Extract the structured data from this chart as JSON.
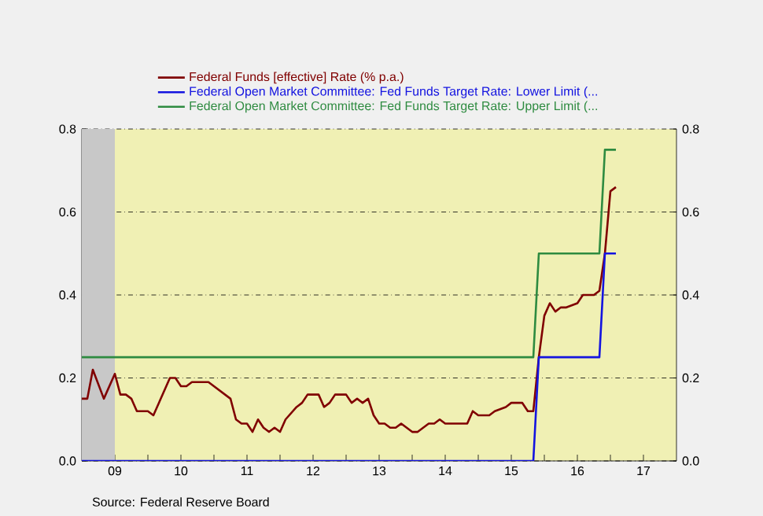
{
  "chart_data": {
    "type": "line",
    "annotations": [
      "Source:  Federal Reserve Board"
    ],
    "xlim": [
      "2009-01",
      "2018-01"
    ],
    "xticks": [
      {
        "value": "2009-07",
        "label": "09"
      },
      {
        "value": "2010-01",
        "label": null
      },
      {
        "value": "2010-07",
        "label": "10"
      },
      {
        "value": "2011-01",
        "label": null
      },
      {
        "value": "2011-07",
        "label": "11"
      },
      {
        "value": "2012-01",
        "label": null
      },
      {
        "value": "2012-07",
        "label": "12"
      },
      {
        "value": "2013-01",
        "label": null
      },
      {
        "value": "2013-07",
        "label": "13"
      },
      {
        "value": "2014-01",
        "label": null
      },
      {
        "value": "2014-07",
        "label": "14"
      },
      {
        "value": "2015-01",
        "label": null
      },
      {
        "value": "2015-07",
        "label": "15"
      },
      {
        "value": "2016-01",
        "label": null
      },
      {
        "value": "2016-07",
        "label": "16"
      },
      {
        "value": "2017-01",
        "label": null
      },
      {
        "value": "2017-07",
        "label": "17"
      }
    ],
    "ylim": [
      0,
      0.8
    ],
    "yticks": [
      {
        "value": 0,
        "label": "0.0"
      },
      {
        "value": 0.2,
        "label": "0.2"
      },
      {
        "value": 0.4,
        "label": "0.4"
      },
      {
        "value": 0.6,
        "label": "0.6"
      },
      {
        "value": 0.8,
        "label": "0.8"
      }
    ],
    "y2lim": [
      0,
      0.8
    ],
    "y2ticks": [
      {
        "value": 0,
        "label": "0.0"
      },
      {
        "value": 0.2,
        "label": "0.2"
      },
      {
        "value": 0.4,
        "label": "0.4"
      },
      {
        "value": 0.6,
        "label": "0.6"
      },
      {
        "value": 0.8,
        "label": "0.8"
      }
    ],
    "grid": "y",
    "legend": "top",
    "bands": [
      {
        "axis": "x",
        "from": "2009-01",
        "to": "2009-07",
        "color": "#c8c8c8"
      }
    ],
    "series": [
      {
        "name": "Federal Funds [effective] Rate (% p.a.)",
        "color": "#800000",
        "x": [
          "2009-01",
          "2009-02",
          "2009-03",
          "2009-05",
          "2009-07",
          "2009-08",
          "2009-09",
          "2009-10",
          "2009-11",
          "2010-01",
          "2010-02",
          "2010-03",
          "2010-05",
          "2010-06",
          "2010-07",
          "2010-08",
          "2010-09",
          "2010-12",
          "2011-02",
          "2011-04",
          "2011-05",
          "2011-06",
          "2011-07",
          "2011-08",
          "2011-09",
          "2011-10",
          "2011-11",
          "2011-12",
          "2012-01",
          "2012-02",
          "2012-04",
          "2012-05",
          "2012-06",
          "2012-08",
          "2012-09",
          "2012-10",
          "2012-11",
          "2013-01",
          "2013-02",
          "2013-03",
          "2013-04",
          "2013-05",
          "2013-06",
          "2013-07",
          "2013-08",
          "2013-09",
          "2013-10",
          "2013-11",
          "2013-12",
          "2014-01",
          "2014-02",
          "2014-04",
          "2014-05",
          "2014-06",
          "2014-07",
          "2014-11",
          "2014-12",
          "2015-01",
          "2015-03",
          "2015-04",
          "2015-06",
          "2015-07",
          "2015-08",
          "2015-09",
          "2015-10",
          "2015-11",
          "2015-12",
          "2016-01",
          "2016-02",
          "2016-03",
          "2016-04",
          "2016-05",
          "2016-07",
          "2016-08",
          "2016-10",
          "2016-11",
          "2016-12",
          "2017-01",
          "2017-02"
        ],
        "values": [
          0.15,
          0.15,
          0.22,
          0.15,
          0.21,
          0.16,
          0.16,
          0.15,
          0.12,
          0.12,
          0.11,
          0.14,
          0.2,
          0.2,
          0.18,
          0.18,
          0.19,
          0.19,
          0.17,
          0.15,
          0.1,
          0.09,
          0.09,
          0.07,
          0.1,
          0.08,
          0.07,
          0.08,
          0.07,
          0.1,
          0.13,
          0.14,
          0.16,
          0.16,
          0.13,
          0.14,
          0.16,
          0.16,
          0.14,
          0.15,
          0.14,
          0.15,
          0.11,
          0.09,
          0.09,
          0.08,
          0.08,
          0.09,
          0.08,
          0.07,
          0.07,
          0.09,
          0.09,
          0.1,
          0.09,
          0.09,
          0.12,
          0.11,
          0.11,
          0.12,
          0.13,
          0.14,
          0.14,
          0.14,
          0.12,
          0.12,
          0.25,
          0.35,
          0.38,
          0.36,
          0.37,
          0.37,
          0.38,
          0.4,
          0.4,
          0.41,
          0.5,
          0.65,
          0.66
        ]
      },
      {
        "name": "Federal Open Market Committee: Fed Funds Target Rate: Lower Limit (...",
        "color": "#1414e0",
        "x": [
          "2009-01",
          "2015-11",
          "2015-12",
          "2016-11",
          "2016-12",
          "2017-02"
        ],
        "values": [
          0,
          0,
          0.25,
          0.25,
          0.5,
          0.5
        ]
      },
      {
        "name": "Federal Open Market Committee: Fed Funds Target Rate: Upper Limit (...",
        "color": "#2e8b40",
        "x": [
          "2009-01",
          "2015-11",
          "2015-12",
          "2016-11",
          "2016-12",
          "2017-02"
        ],
        "values": [
          0.25,
          0.25,
          0.5,
          0.5,
          0.75,
          0.75
        ]
      }
    ]
  }
}
